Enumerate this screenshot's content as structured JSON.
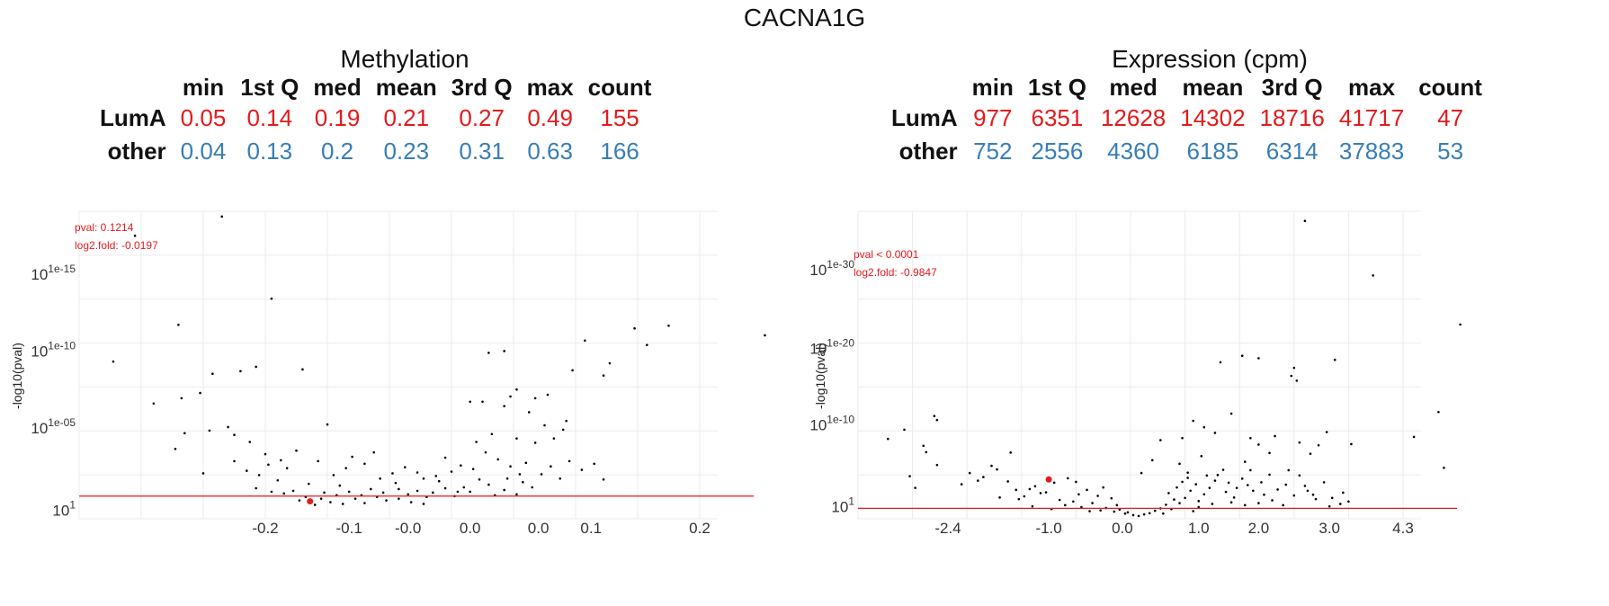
{
  "page_title": "CACNA1G",
  "stats_header": [
    "min",
    "1st Q",
    "med",
    "mean",
    "3rd Q",
    "max",
    "count"
  ],
  "chart_data": [
    {
      "type": "scatter",
      "title": "Methylation",
      "ylabel": "-log10(pval)",
      "xlabel": "",
      "annotation": {
        "pval_text": "pval: 0.1214",
        "fold_text": "log2.fold: -0.0197"
      },
      "stats": [
        {
          "group": "LumA",
          "color": "#e41a1c",
          "values": [
            "0.05",
            "0.14",
            "0.19",
            "0.21",
            "0.27",
            "0.49",
            "155"
          ]
        },
        {
          "group": "other",
          "color": "#377eb8",
          "values": [
            "0.04",
            "0.13",
            "0.2",
            "0.23",
            "0.31",
            "0.63",
            "166"
          ]
        }
      ],
      "x_ticks": [
        "-0.2",
        "-0.1",
        "-0.0",
        "0.0",
        "0.0",
        "0.1",
        "0.2"
      ],
      "y_ticks": [
        {
          "base": "10",
          "exp": "1e-15"
        },
        {
          "base": "10",
          "exp": "1e-10"
        },
        {
          "base": "10",
          "exp": "1e-05"
        },
        {
          "base": "10",
          "exp": "1"
        }
      ],
      "threshold": 1.3,
      "highlight": {
        "x": 3.72,
        "y": 1.0
      },
      "points": [
        [
          0.9,
          16.2
        ],
        [
          2.3,
          17.3
        ],
        [
          0.55,
          9.0
        ],
        [
          1.6,
          11.1
        ],
        [
          3.1,
          12.6
        ],
        [
          1.95,
          7.2
        ],
        [
          1.2,
          6.6
        ],
        [
          1.65,
          6.9
        ],
        [
          2.15,
          8.3
        ],
        [
          2.85,
          8.7
        ],
        [
          3.6,
          8.55
        ],
        [
          2.6,
          8.45
        ],
        [
          4.0,
          5.4
        ],
        [
          1.7,
          4.9
        ],
        [
          2.1,
          5.05
        ],
        [
          2.5,
          4.8
        ],
        [
          2.4,
          5.25
        ],
        [
          1.55,
          4.0
        ],
        [
          2.75,
          4.4
        ],
        [
          2.0,
          2.6
        ],
        [
          2.7,
          2.75
        ],
        [
          2.5,
          3.3
        ],
        [
          3.0,
          3.7
        ],
        [
          3.25,
          3.35
        ],
        [
          3.5,
          3.9
        ],
        [
          3.35,
          2.9
        ],
        [
          2.9,
          2.5
        ],
        [
          3.05,
          3.1
        ],
        [
          4.3,
          2.9
        ],
        [
          4.1,
          2.5
        ],
        [
          3.85,
          3.3
        ],
        [
          4.6,
          3.15
        ],
        [
          4.75,
          3.8
        ],
        [
          4.4,
          3.55
        ],
        [
          4.85,
          2.3
        ],
        [
          5.1,
          2.05
        ],
        [
          5.55,
          2.3
        ],
        [
          5.9,
          1.75
        ],
        [
          3.7,
          2.0
        ],
        [
          3.2,
          2.2
        ],
        [
          4.2,
          1.9
        ],
        [
          3.45,
          1.6
        ],
        [
          3.95,
          1.5
        ],
        [
          4.55,
          1.35
        ],
        [
          3.1,
          1.55
        ],
        [
          2.85,
          1.75
        ],
        [
          5.7,
          1.5
        ],
        [
          6.1,
          1.55
        ],
        [
          8.15,
          10.2
        ],
        [
          8.95,
          10.9
        ],
        [
          9.15,
          9.95
        ],
        [
          9.5,
          11.05
        ],
        [
          11.05,
          10.5
        ],
        [
          8.45,
          8.2
        ],
        [
          8.55,
          8.9
        ],
        [
          7.95,
          8.5
        ],
        [
          6.6,
          9.5
        ],
        [
          6.85,
          9.6
        ],
        [
          6.3,
          6.7
        ],
        [
          6.5,
          6.7
        ],
        [
          6.95,
          7.0
        ],
        [
          7.05,
          7.4
        ],
        [
          7.25,
          6.1
        ],
        [
          6.85,
          6.45
        ],
        [
          7.35,
          6.9
        ],
        [
          7.55,
          7.1
        ],
        [
          7.5,
          5.35
        ],
        [
          7.8,
          5.1
        ],
        [
          7.85,
          5.6
        ],
        [
          7.65,
          4.6
        ],
        [
          7.35,
          4.35
        ],
        [
          7.05,
          4.6
        ],
        [
          6.65,
          4.85
        ],
        [
          6.4,
          4.4
        ],
        [
          6.55,
          3.8
        ],
        [
          6.75,
          3.4
        ],
        [
          6.95,
          3.0
        ],
        [
          7.2,
          3.2
        ],
        [
          7.1,
          2.55
        ],
        [
          6.35,
          2.85
        ],
        [
          6.15,
          3.05
        ],
        [
          5.9,
          3.5
        ],
        [
          6.0,
          2.7
        ],
        [
          5.75,
          2.45
        ],
        [
          5.45,
          2.65
        ],
        [
          5.25,
          2.95
        ],
        [
          5.05,
          2.6
        ],
        [
          6.45,
          2.25
        ],
        [
          7.45,
          2.55
        ],
        [
          7.6,
          3.0
        ],
        [
          7.75,
          2.3
        ],
        [
          8.1,
          2.8
        ],
        [
          7.9,
          3.3
        ],
        [
          8.3,
          3.15
        ],
        [
          8.45,
          2.25
        ],
        [
          6.6,
          1.95
        ],
        [
          6.85,
          1.65
        ],
        [
          7.05,
          1.4
        ],
        [
          6.3,
          1.55
        ],
        [
          6.05,
          1.3
        ],
        [
          5.6,
          1.25
        ],
        [
          5.45,
          1.6
        ],
        [
          5.15,
          1.7
        ],
        [
          5.8,
          2.15
        ],
        [
          6.2,
          1.8
        ],
        [
          6.7,
          1.35
        ],
        [
          7.3,
          1.8
        ],
        [
          7.15,
          2.1
        ],
        [
          6.9,
          2.3
        ],
        [
          3.3,
          1.45
        ],
        [
          3.65,
          1.25
        ],
        [
          3.9,
          1.15
        ],
        [
          4.15,
          1.35
        ],
        [
          4.35,
          1.55
        ],
        [
          4.7,
          1.7
        ],
        [
          4.9,
          1.5
        ],
        [
          4.45,
          1.15
        ],
        [
          4.8,
          1.25
        ],
        [
          5.3,
          1.4
        ],
        [
          3.55,
          1.05
        ],
        [
          4.05,
          0.95
        ],
        [
          4.25,
          0.85
        ],
        [
          4.95,
          1.05
        ],
        [
          5.15,
          1.15
        ],
        [
          5.35,
          0.95
        ],
        [
          4.6,
          0.9
        ],
        [
          3.8,
          0.8
        ],
        [
          5.55,
          0.85
        ]
      ]
    },
    {
      "type": "scatter",
      "title": "Expression (cpm)",
      "ylabel": "-log10(pval)",
      "xlabel": "",
      "annotation": {
        "pval_text": "pval < 0.0001",
        "fold_text": "log2.fold: -0.9847"
      },
      "stats": [
        {
          "group": "LumA",
          "color": "#e41a1c",
          "values": [
            "977",
            "6351",
            "12628",
            "14302",
            "18716",
            "41717",
            "47"
          ]
        },
        {
          "group": "other",
          "color": "#377eb8",
          "values": [
            "752",
            "2556",
            "4360",
            "6185",
            "6314",
            "37883",
            "53"
          ]
        }
      ],
      "x_ticks": [
        "-2.4",
        "-1.0",
        "0.0",
        "1.0",
        "2.0",
        "3.0",
        "4.3"
      ],
      "y_ticks": [
        {
          "base": "10",
          "exp": "1e-30"
        },
        {
          "base": "10",
          "exp": "1e-20"
        },
        {
          "base": "10",
          "exp": "1e-10"
        },
        {
          "base": "10",
          "exp": "1"
        }
      ],
      "threshold": 1.3,
      "highlight": {
        "x": 3.5,
        "y": 4.9
      },
      "points": [
        [
          8.2,
          37.1
        ],
        [
          9.45,
          30.3
        ],
        [
          11.05,
          24.2
        ],
        [
          10.65,
          13.3
        ],
        [
          10.2,
          10.2
        ],
        [
          10.75,
          6.35
        ],
        [
          7.95,
          17.8
        ],
        [
          8.05,
          17.2
        ],
        [
          8.0,
          18.8
        ],
        [
          7.05,
          20.3
        ],
        [
          6.65,
          19.5
        ],
        [
          8.75,
          19.8
        ],
        [
          6.85,
          13.1
        ],
        [
          7.35,
          20.0
        ],
        [
          5.95,
          10.05
        ],
        [
          6.35,
          11.4
        ],
        [
          6.15,
          12.2
        ],
        [
          6.55,
          10.7
        ],
        [
          6.3,
          7.8
        ],
        [
          7.2,
          10.05
        ],
        [
          7.65,
          10.3
        ],
        [
          8.3,
          8.1
        ],
        [
          8.45,
          9.15
        ],
        [
          7.55,
          8.2
        ],
        [
          9.05,
          9.3
        ],
        [
          8.6,
          10.8
        ],
        [
          8.1,
          9.5
        ],
        [
          7.1,
          7.1
        ],
        [
          7.35,
          9.25
        ],
        [
          7.2,
          6.05
        ],
        [
          6.05,
          5.75
        ],
        [
          5.9,
          6.85
        ],
        [
          5.55,
          9.8
        ],
        [
          5.2,
          5.7
        ],
        [
          4.5,
          3.9
        ],
        [
          5.4,
          7.3
        ],
        [
          7.9,
          6.05
        ],
        [
          8.1,
          5.4
        ],
        [
          8.2,
          4.1
        ],
        [
          0.55,
          9.95
        ],
        [
          0.85,
          11.1
        ],
        [
          1.4,
          12.8
        ],
        [
          1.45,
          12.3
        ],
        [
          1.2,
          9.1
        ],
        [
          1.25,
          8.3
        ],
        [
          1.45,
          6.7
        ],
        [
          0.95,
          5.3
        ],
        [
          1.05,
          3.85
        ],
        [
          1.9,
          4.3
        ],
        [
          2.3,
          5.2
        ],
        [
          2.55,
          6.15
        ],
        [
          2.8,
          8.25
        ],
        [
          2.45,
          6.6
        ],
        [
          2.05,
          5.7
        ],
        [
          2.2,
          4.75
        ],
        [
          2.75,
          4.65
        ],
        [
          3.25,
          4.05
        ],
        [
          3.6,
          4.5
        ],
        [
          2.9,
          3.6
        ],
        [
          3.05,
          2.8
        ],
        [
          3.35,
          3.2
        ],
        [
          2.6,
          2.65
        ],
        [
          3.85,
          5.05
        ],
        [
          4.0,
          4.6
        ],
        [
          3.15,
          3.7
        ],
        [
          3.7,
          2.35
        ],
        [
          2.95,
          2.45
        ],
        [
          3.45,
          3.3
        ],
        [
          4.2,
          3.6
        ],
        [
          4.05,
          3.05
        ],
        [
          4.4,
          2.85
        ],
        [
          4.65,
          2.55
        ],
        [
          3.95,
          2.15
        ],
        [
          3.8,
          1.7
        ],
        [
          4.3,
          1.95
        ],
        [
          4.55,
          1.35
        ],
        [
          4.1,
          1.45
        ],
        [
          3.55,
          1.2
        ],
        [
          3.2,
          1.55
        ],
        [
          4.75,
          1.7
        ],
        [
          4.8,
          1.15
        ],
        [
          4.95,
          0.8
        ],
        [
          5.05,
          0.45
        ],
        [
          5.15,
          0.35
        ],
        [
          5.25,
          0.55
        ],
        [
          4.9,
          0.65
        ],
        [
          4.7,
          0.9
        ],
        [
          5.35,
          0.7
        ],
        [
          5.45,
          1.0
        ],
        [
          5.55,
          1.3
        ],
        [
          5.65,
          1.75
        ],
        [
          5.8,
          2.4
        ],
        [
          5.7,
          3.2
        ],
        [
          5.85,
          3.9
        ],
        [
          5.95,
          4.6
        ],
        [
          6.05,
          5.1
        ],
        [
          6.2,
          4.3
        ],
        [
          6.1,
          3.5
        ],
        [
          6.0,
          2.6
        ],
        [
          5.9,
          1.95
        ],
        [
          6.25,
          2.2
        ],
        [
          6.35,
          3.05
        ],
        [
          6.45,
          3.85
        ],
        [
          6.55,
          4.75
        ],
        [
          6.4,
          5.4
        ],
        [
          6.7,
          6.1
        ],
        [
          6.6,
          5.45
        ],
        [
          6.8,
          4.5
        ],
        [
          6.75,
          3.35
        ],
        [
          6.9,
          2.65
        ],
        [
          6.95,
          3.85
        ],
        [
          7.05,
          5.0
        ],
        [
          7.15,
          4.2
        ],
        [
          7.25,
          3.5
        ],
        [
          7.4,
          4.55
        ],
        [
          7.45,
          3.0
        ],
        [
          7.55,
          5.5
        ],
        [
          7.6,
          2.3
        ],
        [
          7.7,
          3.65
        ],
        [
          7.85,
          4.25
        ],
        [
          8.0,
          2.9
        ],
        [
          8.25,
          3.5
        ],
        [
          8.4,
          2.45
        ],
        [
          8.55,
          4.55
        ],
        [
          8.35,
          3.0
        ],
        [
          8.7,
          2.6
        ],
        [
          8.9,
          3.25
        ],
        [
          9.0,
          2.15
        ],
        [
          8.85,
          1.85
        ],
        [
          8.65,
          1.55
        ],
        [
          5.75,
          1.2
        ],
        [
          6.25,
          1.45
        ],
        [
          6.5,
          1.85
        ],
        [
          6.85,
          2.05
        ],
        [
          7.1,
          1.7
        ],
        [
          7.35,
          1.95
        ],
        [
          7.8,
          1.7
        ],
        [
          6.15,
          0.95
        ],
        [
          5.6,
          0.65
        ],
        [
          4.45,
          1.05
        ],
        [
          4.25,
          0.95
        ]
      ]
    }
  ]
}
